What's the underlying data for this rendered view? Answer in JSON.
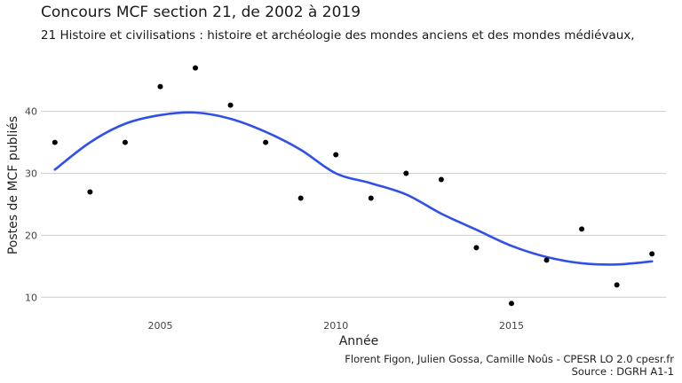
{
  "chart_data": {
    "type": "scatter",
    "title": "Concours MCF section 21, de 2002 à 2019",
    "subtitle": "21 Histoire et civilisations : histoire et archéologie des mondes anciens et des mondes médiévaux,",
    "xlabel": "Année",
    "ylabel": "Postes de MCF publiés",
    "xlim": [
      2001.6,
      2019.4
    ],
    "ylim": [
      7.9,
      49.1
    ],
    "x_ticks": [
      2005,
      2010,
      2015
    ],
    "y_ticks": [
      10,
      20,
      30,
      40
    ],
    "grid": true,
    "points": [
      {
        "x": 2002,
        "y": 35
      },
      {
        "x": 2003,
        "y": 27
      },
      {
        "x": 2004,
        "y": 35
      },
      {
        "x": 2005,
        "y": 44
      },
      {
        "x": 2006,
        "y": 47
      },
      {
        "x": 2007,
        "y": 41
      },
      {
        "x": 2008,
        "y": 35
      },
      {
        "x": 2009,
        "y": 26
      },
      {
        "x": 2010,
        "y": 33
      },
      {
        "x": 2011,
        "y": 26
      },
      {
        "x": 2012,
        "y": 30
      },
      {
        "x": 2013,
        "y": 29
      },
      {
        "x": 2014,
        "y": 18
      },
      {
        "x": 2015,
        "y": 9
      },
      {
        "x": 2016,
        "y": 16
      },
      {
        "x": 2017,
        "y": 21
      },
      {
        "x": 2018,
        "y": 12
      },
      {
        "x": 2019,
        "y": 17
      }
    ],
    "trend": {
      "type": "smooth",
      "color": "#3050e8",
      "x": [
        2002,
        2003,
        2004,
        2005,
        2006,
        2007,
        2008,
        2009,
        2010,
        2011,
        2012,
        2013,
        2014,
        2015,
        2016,
        2017,
        2018,
        2019
      ],
      "y": [
        30.6,
        35.0,
        38.0,
        39.4,
        39.8,
        38.8,
        36.7,
        33.8,
        30.0,
        28.4,
        26.6,
        23.5,
        20.9,
        18.3,
        16.5,
        15.5,
        15.3,
        15.8
      ]
    }
  },
  "caption": {
    "credits": "Florent Figon, Julien Gossa, Camille Noûs - CPESR LO 2.0 cpesr.fr",
    "source": "Source : DGRH A1-1"
  }
}
